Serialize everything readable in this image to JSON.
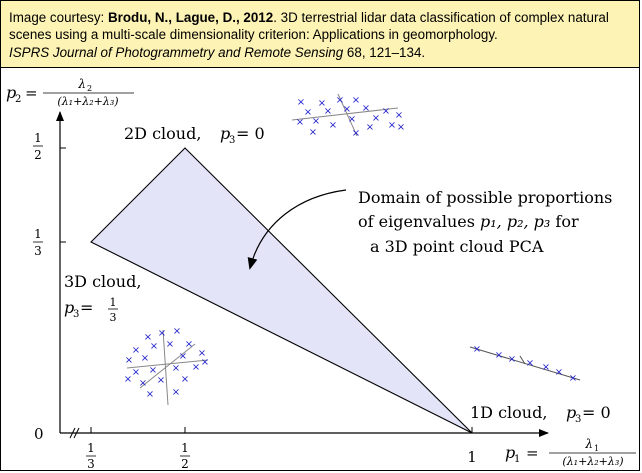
{
  "caption": {
    "prefix": "Image courtesy: ",
    "authors": "Brodu, N., Lague, D., 2012",
    "title_text": ". 3D terrestrial lidar data classification of complex natural scenes using a multi-scale dimensionality criterion: Applications in geomorphology.",
    "journal": "ISPRS Journal of Photogrammetry and Remote Sensing",
    "volume_pages": " 68, 121–134."
  },
  "axes": {
    "y_label_lhs": "p",
    "y_label_sub": "2",
    "y_numerator": "λ",
    "y_numerator_sub": "2",
    "y_denominator": "(λ₁+λ₂+λ₃)",
    "x_label_lhs": "p",
    "x_label_sub": "1",
    "x_numerator": "λ",
    "x_numerator_sub": "1",
    "x_denominator": "(λ₁+λ₂+λ₃)",
    "equals": "=",
    "origin": "0",
    "one": "1",
    "frac_one": "1",
    "frac_two": "2",
    "frac_three": "3"
  },
  "labels": {
    "cloud_2d": "2D cloud, ",
    "cloud_2d_cond": "p",
    "cloud_2d_sub": "3",
    "cloud_2d_val": " = 0",
    "cloud_3d_line1": "3D cloud,",
    "cloud_3d_cond": "p",
    "cloud_3d_sub": "3",
    "cloud_3d_eq": " =",
    "cloud_1d": "1D cloud, ",
    "cloud_1d_cond": "p",
    "cloud_1d_sub": "3",
    "cloud_1d_val": " = 0"
  },
  "domain_note": {
    "line1": "Domain of possible proportions",
    "line2_pre": "of eigenvalues ",
    "line2_math": "p₁, p₂, p₃",
    "line2_post": " for",
    "line3": "a 3D point cloud PCA"
  },
  "colors": {
    "region_fill": "#e4e4f8",
    "marker": "#2222cc",
    "caption_bg": "#fdf3b4"
  },
  "marker_glyph": "×",
  "icons": [
    "curved-arrow-icon",
    "cross-marker-icon"
  ]
}
